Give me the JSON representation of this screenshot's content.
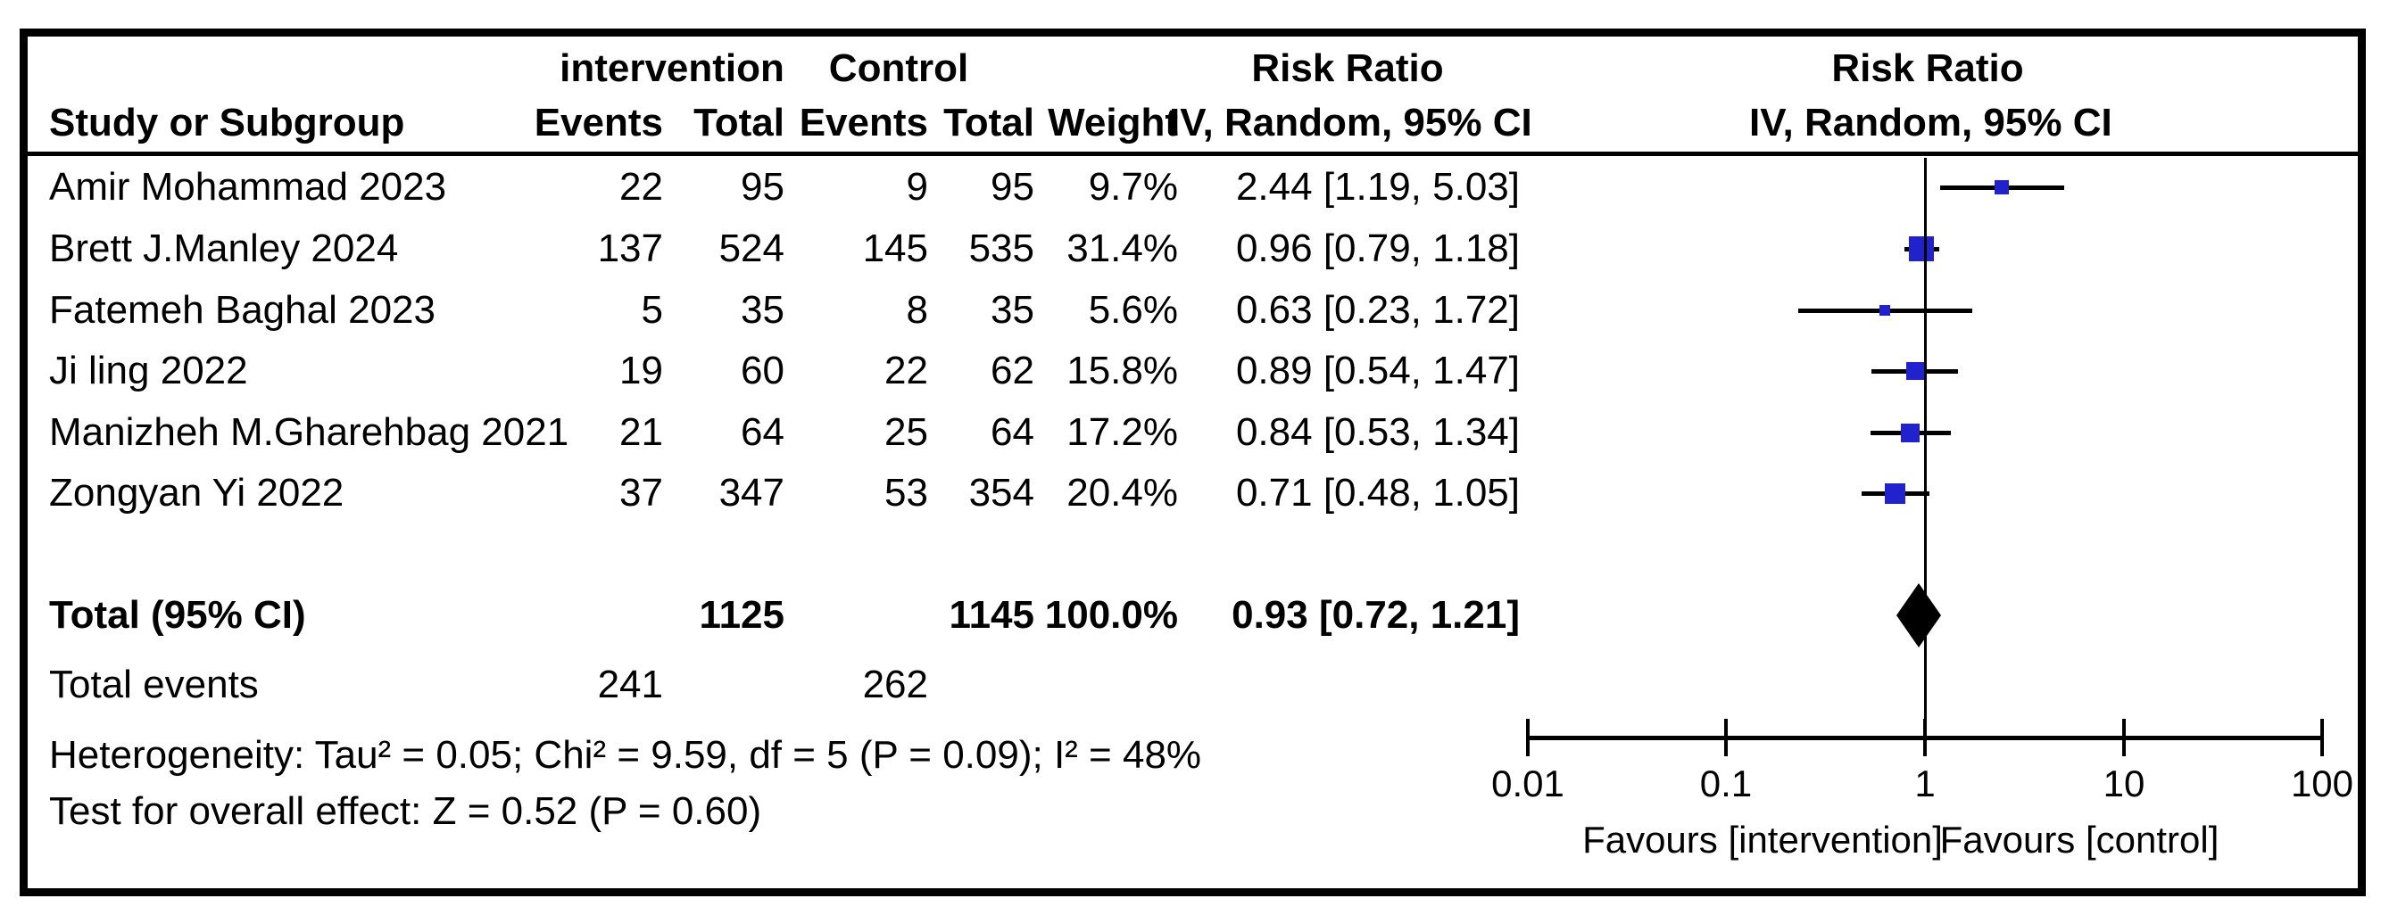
{
  "figure": {
    "type": "forest-plot-meta-analysis",
    "background": "#FFFFFF",
    "border_color": "#000000"
  },
  "header": {
    "group_intervention": "intervention",
    "group_control": "Control",
    "col_study": "Study or Subgroup",
    "col_events_intervention": "Events",
    "col_total_intervention": "Total",
    "col_events_control": "Events",
    "col_total_control": "Total",
    "col_weight": "Weight",
    "rr_column_title": "Risk Ratio",
    "rr_column_subtitle": "IV, Random, 95% CI",
    "plot_column_title": "Risk Ratio",
    "plot_column_subtitle": "IV, Random, 95% CI"
  },
  "studies": [
    {
      "name": "Amir Mohammad 2023",
      "int_events": "22",
      "int_total": "95",
      "ctl_events": "9",
      "ctl_total": "95",
      "weight": "9.7%",
      "rr_text": "2.44 [1.19, 5.03]",
      "rr": 2.44,
      "ci_low": 1.19,
      "ci_high": 5.03,
      "weight_value": 9.7
    },
    {
      "name": "Brett J.Manley 2024",
      "int_events": "137",
      "int_total": "524",
      "ctl_events": "145",
      "ctl_total": "535",
      "weight": "31.4%",
      "rr_text": "0.96 [0.79, 1.18]",
      "rr": 0.96,
      "ci_low": 0.79,
      "ci_high": 1.18,
      "weight_value": 31.4
    },
    {
      "name": "Fatemeh Baghal 2023",
      "int_events": "5",
      "int_total": "35",
      "ctl_events": "8",
      "ctl_total": "35",
      "weight": "5.6%",
      "rr_text": "0.63 [0.23, 1.72]",
      "rr": 0.63,
      "ci_low": 0.23,
      "ci_high": 1.72,
      "weight_value": 5.6
    },
    {
      "name": "Ji ling 2022",
      "int_events": "19",
      "int_total": "60",
      "ctl_events": "22",
      "ctl_total": "62",
      "weight": "15.8%",
      "rr_text": "0.89 [0.54, 1.47]",
      "rr": 0.89,
      "ci_low": 0.54,
      "ci_high": 1.47,
      "weight_value": 15.8
    },
    {
      "name": "Manizheh M.Gharehbag 2021",
      "int_events": "21",
      "int_total": "64",
      "ctl_events": "25",
      "ctl_total": "64",
      "weight": "17.2%",
      "rr_text": "0.84 [0.53, 1.34]",
      "rr": 0.84,
      "ci_low": 0.53,
      "ci_high": 1.34,
      "weight_value": 17.2
    },
    {
      "name": "Zongyan Yi 2022",
      "int_events": "37",
      "int_total": "347",
      "ctl_events": "53",
      "ctl_total": "354",
      "weight": "20.4%",
      "rr_text": "0.71 [0.48, 1.05]",
      "rr": 0.71,
      "ci_low": 0.48,
      "ci_high": 1.05,
      "weight_value": 20.4
    }
  ],
  "total_row": {
    "label": "Total (95% CI)",
    "int_total": "1125",
    "ctl_total": "1145",
    "weight": "100.0%",
    "rr_text": "0.93 [0.72, 1.21]",
    "rr": 0.93,
    "ci_low": 0.72,
    "ci_high": 1.21
  },
  "total_events_row": {
    "label": "Total events",
    "int_events": "241",
    "ctl_events": "262"
  },
  "footnotes": {
    "heterogeneity": "Heterogeneity: Tau² = 0.05; Chi² = 9.59, df = 5 (P = 0.09); I² = 48%",
    "overall_effect": "Test for overall effect: Z = 0.52 (P = 0.60)"
  },
  "chart_data": {
    "type": "scatter",
    "subtype": "forest",
    "title": "Risk Ratio",
    "xlabel": "IV, Random, 95% CI",
    "x_scale": "log10",
    "x_ticks": [
      0.01,
      0.1,
      1,
      10,
      100
    ],
    "x_tick_labels": [
      "0.01",
      "0.1",
      "1",
      "10",
      "100"
    ],
    "xlim": [
      0.01,
      100
    ],
    "reference_line": 1,
    "favours_left": "Favours [intervention]",
    "favours_right": "Favours [control]",
    "series": [
      {
        "name": "Amir Mohammad 2023",
        "rr": 2.44,
        "ci": [
          1.19,
          5.03
        ],
        "weight_pct": 9.7
      },
      {
        "name": "Brett J.Manley 2024",
        "rr": 0.96,
        "ci": [
          0.79,
          1.18
        ],
        "weight_pct": 31.4
      },
      {
        "name": "Fatemeh Baghal 2023",
        "rr": 0.63,
        "ci": [
          0.23,
          1.72
        ],
        "weight_pct": 5.6
      },
      {
        "name": "Ji ling 2022",
        "rr": 0.89,
        "ci": [
          0.54,
          1.47
        ],
        "weight_pct": 15.8
      },
      {
        "name": "Manizheh M.Gharehbag 2021",
        "rr": 0.84,
        "ci": [
          0.53,
          1.34
        ],
        "weight_pct": 17.2
      },
      {
        "name": "Zongyan Yi 2022",
        "rr": 0.71,
        "ci": [
          0.48,
          1.05
        ],
        "weight_pct": 20.4
      }
    ],
    "summary": {
      "label": "Total (95% CI)",
      "rr": 0.93,
      "ci": [
        0.72,
        1.21
      ]
    },
    "legend": null,
    "grid": false
  },
  "colors": {
    "marker_blue": "#2222CC",
    "diamond_black": "#000000",
    "line_black": "#000000",
    "text_black": "#000000",
    "background": "#FFFFFF"
  }
}
